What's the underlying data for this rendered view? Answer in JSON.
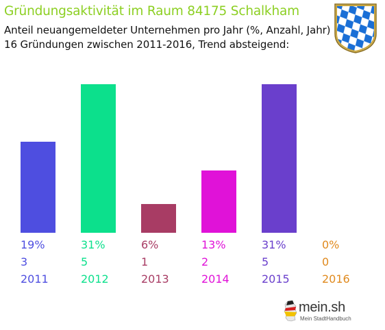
{
  "header": {
    "title": "Gründungsaktivität im Raum 84175 Schalkham",
    "subtitle_line1": "Anteil neuangemeldeter Unternehmen pro Jahr (%, Anzahl, Jahr)",
    "subtitle_line2": "16 Gründungen zwischen 2011-2016, Trend absteigend:"
  },
  "crest": {
    "icon": "bavarian-coat-of-arms",
    "colors": {
      "blue": "#1a6fd6",
      "white": "#ffffff",
      "gold": "#d8b44a"
    }
  },
  "logo": {
    "name": "mein.sh",
    "tagline": "Mein StadtHandbuch"
  },
  "chart_data": {
    "type": "bar",
    "categories": [
      "2011",
      "2012",
      "2013",
      "2014",
      "2015",
      "2016"
    ],
    "values": [
      19,
      31,
      6,
      13,
      31,
      0
    ],
    "counts": [
      3,
      5,
      1,
      2,
      5,
      0
    ],
    "percent_labels": [
      "19%",
      "31%",
      "6%",
      "13%",
      "31%",
      "0%"
    ],
    "count_labels": [
      "3",
      "5",
      "1",
      "2",
      "5",
      "0"
    ],
    "colors": [
      "#4e4ee0",
      "#0ce08c",
      "#a83c64",
      "#e012d8",
      "#6a3fcc",
      "#e08a1e"
    ],
    "ylim": [
      0,
      31
    ],
    "grid": false
  }
}
